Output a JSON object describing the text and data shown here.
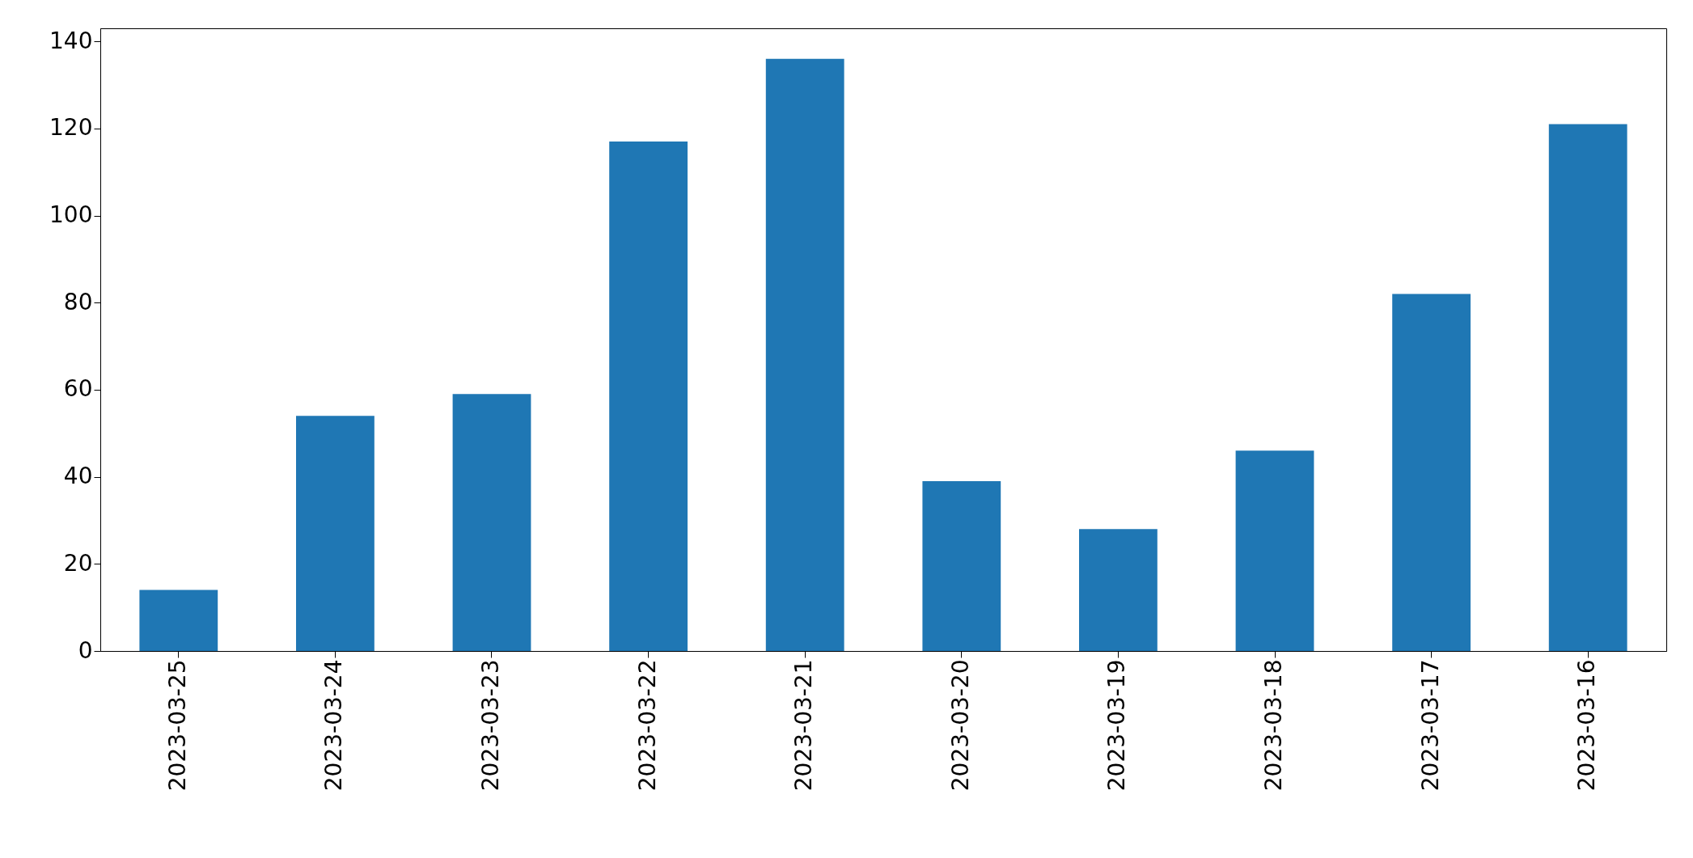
{
  "chart_data": {
    "type": "bar",
    "categories": [
      "2023-03-25",
      "2023-03-24",
      "2023-03-23",
      "2023-03-22",
      "2023-03-21",
      "2023-03-20",
      "2023-03-19",
      "2023-03-18",
      "2023-03-17",
      "2023-03-16"
    ],
    "values": [
      14,
      54,
      59,
      117,
      136,
      39,
      28,
      46,
      82,
      121
    ],
    "color": "#1f77b4",
    "ylim": [
      0,
      143
    ],
    "yticks": [
      0,
      20,
      40,
      60,
      80,
      100,
      120,
      140
    ],
    "grid": false
  }
}
